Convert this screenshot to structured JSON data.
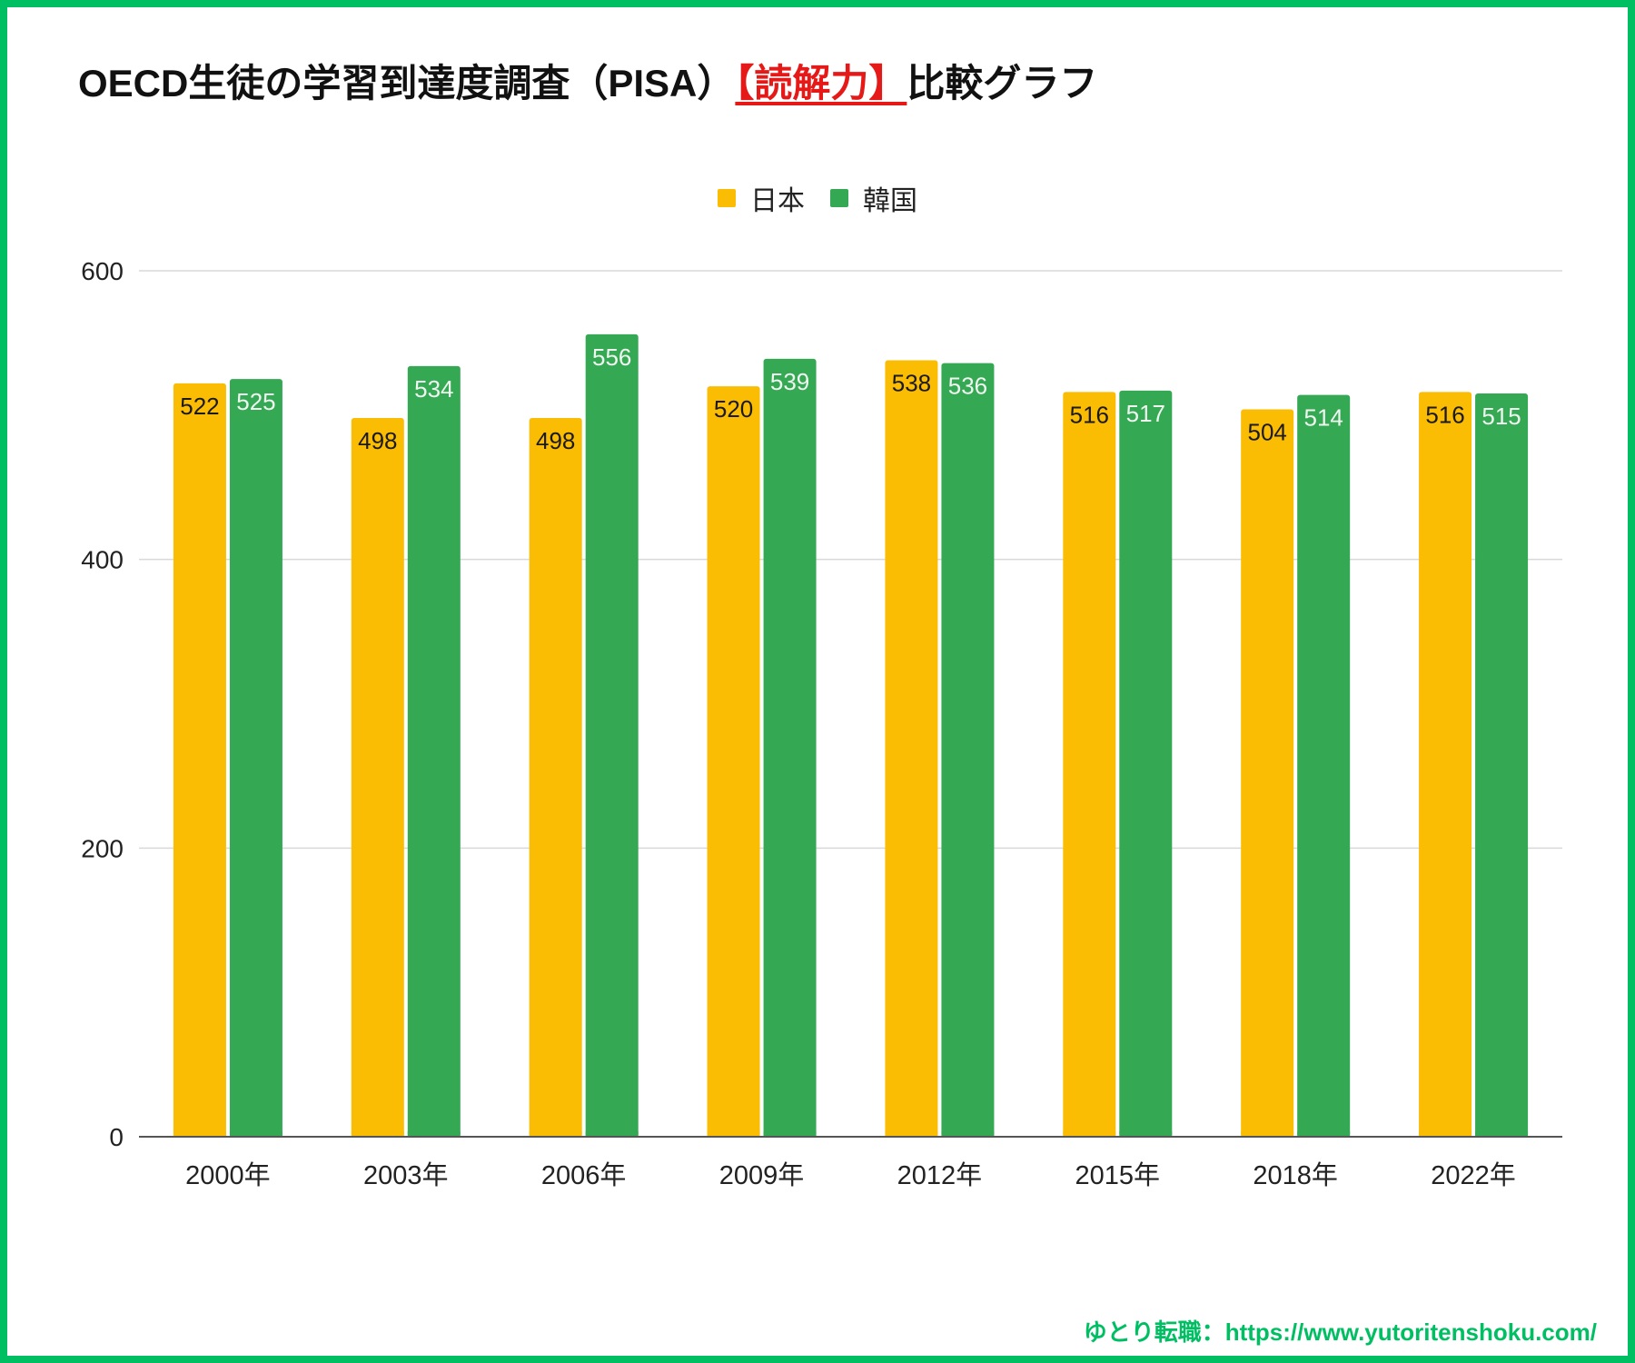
{
  "title": {
    "prefix": "OECD生徒の学習到達度調査（PISA）",
    "highlight": "【読解力】",
    "suffix": "比較グラフ"
  },
  "footer": "ゆとり転職：https://www.yutoritenshoku.com/",
  "colors": {
    "japan": "#fbbc04",
    "korea": "#34a853",
    "frame": "#00bf63",
    "highlight": "#e61919",
    "grid": "#d9d9d9",
    "axis": "#333333"
  },
  "chart_data": {
    "type": "bar",
    "title": "OECD生徒の学習到達度調査（PISA）【読解力】比較グラフ",
    "xlabel": "",
    "ylabel": "",
    "categories": [
      "2000年",
      "2003年",
      "2006年",
      "2009年",
      "2012年",
      "2015年",
      "2018年",
      "2022年"
    ],
    "series": [
      {
        "name": "日本",
        "values": [
          522,
          498,
          498,
          520,
          538,
          516,
          504,
          516
        ]
      },
      {
        "name": "韓国",
        "values": [
          525,
          534,
          556,
          539,
          536,
          517,
          514,
          515
        ]
      }
    ],
    "ylim": [
      0,
      600
    ],
    "yticks": [
      "0",
      "200",
      "400",
      "600"
    ],
    "grid": true,
    "legend_position": "top-center",
    "data_labels": true
  }
}
